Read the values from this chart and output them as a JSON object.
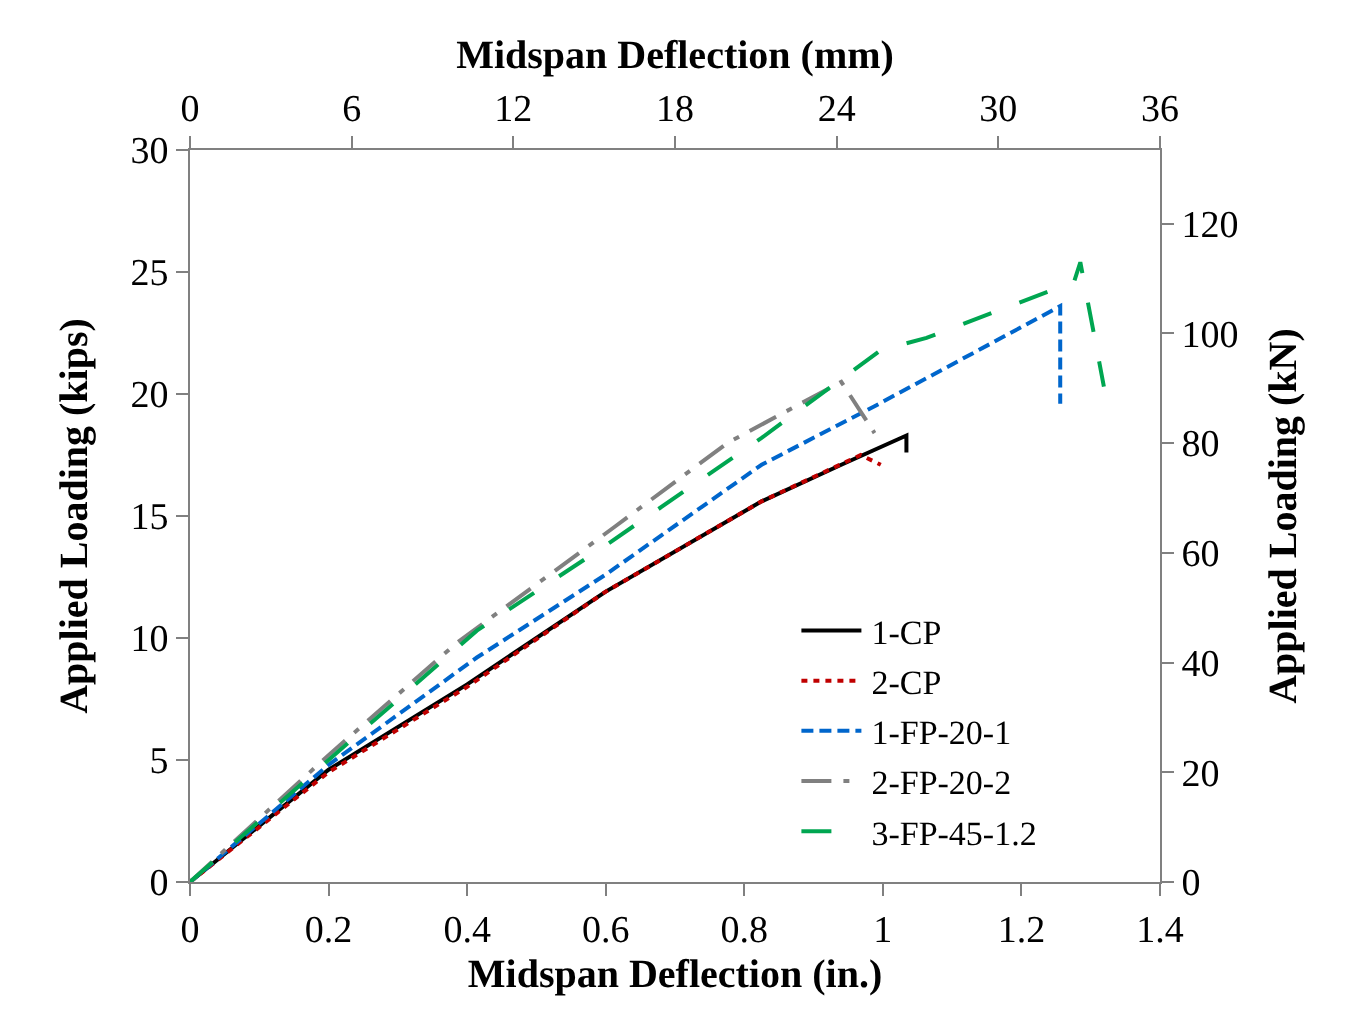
{
  "chart_data": {
    "type": "line",
    "xlabel": "Midspan Deflection (in.)",
    "x2label": "Midspan Deflection (mm)",
    "ylabel": "Applied Loading (kips)",
    "y2label": "Applied Loading (kN)",
    "xlim": [
      0,
      1.4
    ],
    "xticks": [
      0,
      0.2,
      0.4,
      0.6,
      0.8,
      1,
      1.2,
      1.4
    ],
    "x2lim": [
      0,
      36
    ],
    "x2ticks": [
      0,
      6,
      12,
      18,
      24,
      30,
      36
    ],
    "ylim": [
      0,
      30
    ],
    "yticks": [
      0,
      5,
      10,
      15,
      20,
      25,
      30
    ],
    "y2lim": [
      0,
      133.45
    ],
    "y2ticks": [
      0,
      20,
      40,
      60,
      80,
      100,
      120
    ],
    "legend": "bottom right",
    "marker": "none",
    "series": [
      {
        "name": "1-CP",
        "color": "#000000",
        "line_style": "solid",
        "x": [
          0,
          0.2,
          0.4,
          0.6,
          0.825,
          0.94,
          1.034,
          1.034
        ],
        "values": [
          0,
          4.6,
          8.1,
          11.9,
          15.6,
          17.1,
          18.3,
          17.6
        ]
      },
      {
        "name": "2-CP",
        "color": "#c00000",
        "line_style": "dotted",
        "x": [
          0,
          0.2,
          0.4,
          0.6,
          0.825,
          0.968,
          0.997
        ],
        "values": [
          0,
          4.5,
          8.0,
          11.9,
          15.6,
          17.5,
          17.1
        ]
      },
      {
        "name": "1-FP-20-1",
        "color": "#0066cc",
        "line_style": "dashed",
        "x": [
          0,
          0.2,
          0.414,
          0.6,
          0.825,
          0.988,
          1.256,
          1.256
        ],
        "values": [
          0,
          4.8,
          9.2,
          12.6,
          17.1,
          19.5,
          23.6,
          19.6
        ]
      },
      {
        "name": "2-FP-20-2",
        "color": "#808080",
        "line_style": "dashdot",
        "x": [
          0,
          0.2,
          0.385,
          0.615,
          0.776,
          0.94,
          0.988
        ],
        "values": [
          0,
          5.2,
          9.8,
          14.6,
          18.0,
          20.5,
          18.4
        ]
      },
      {
        "name": "3-FP-45-1.2",
        "color": "#00a651",
        "line_style": "longdash",
        "x": [
          0,
          0.2,
          0.414,
          0.595,
          0.825,
          0.997,
          1.063,
          1.276,
          1.285,
          1.319
        ],
        "values": [
          0,
          5.0,
          10.3,
          13.7,
          18.2,
          21.8,
          22.3,
          24.6,
          25.4,
          20.3
        ]
      }
    ]
  }
}
